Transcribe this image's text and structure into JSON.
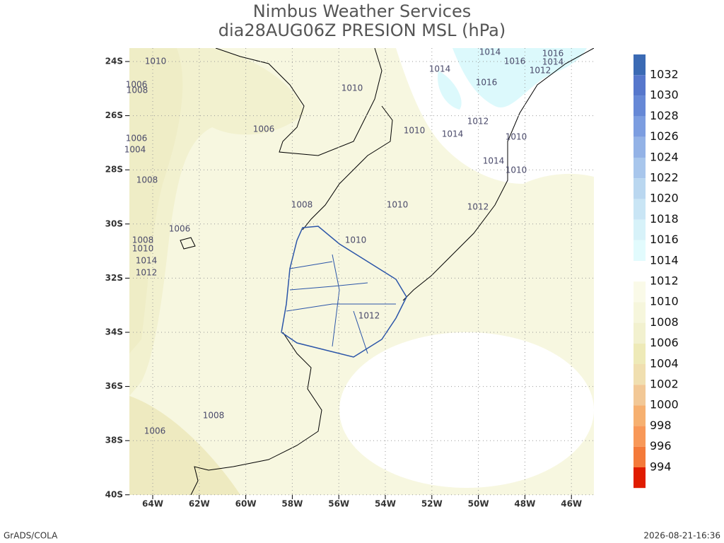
{
  "header": {
    "title": "Nimbus Weather Services",
    "subtitle": "dia28AUG06Z PRESION MSL (hPa)"
  },
  "map": {
    "lat_labels": [
      "24S",
      "26S",
      "28S",
      "30S",
      "32S",
      "34S",
      "36S",
      "38S",
      "40S"
    ],
    "lon_labels": [
      "64W",
      "62W",
      "60W",
      "58W",
      "56W",
      "54W",
      "52W",
      "50W",
      "48W",
      "46W"
    ],
    "contour_labels": [
      1010,
      1010,
      1014,
      1014,
      1016,
      1016,
      1014,
      1012,
      1016,
      1006,
      1010,
      1014,
      1012,
      1010,
      1014,
      1010,
      1008,
      1008,
      1010,
      1012,
      1006,
      1010,
      1008,
      1010,
      1014,
      1012,
      1012,
      1008,
      1006,
      1006,
      1004,
      1006,
      1008
    ]
  },
  "colorbar": {
    "labels": [
      1032,
      1030,
      1028,
      1026,
      1024,
      1022,
      1020,
      1018,
      1016,
      1014,
      1012,
      1010,
      1008,
      1006,
      1004,
      1002,
      1000,
      998,
      996,
      994
    ],
    "colors": [
      "#3b6ab4",
      "#5677cc",
      "#6688d6",
      "#7c9de0",
      "#93b2e6",
      "#a8c6ec",
      "#bad7f0",
      "#c9e5f5",
      "#d7f2f9",
      "#e2fbfd",
      "#ffffff",
      "#fafae8",
      "#f6f6dc",
      "#f2f1cf",
      "#eeeab8",
      "#f0dfb0",
      "#f2c896",
      "#f6b070",
      "#f89858",
      "#f47a3a",
      "#e01c00"
    ]
  },
  "footer": {
    "left": "GrADS/COLA",
    "right": "2026-08-21-16:36"
  }
}
